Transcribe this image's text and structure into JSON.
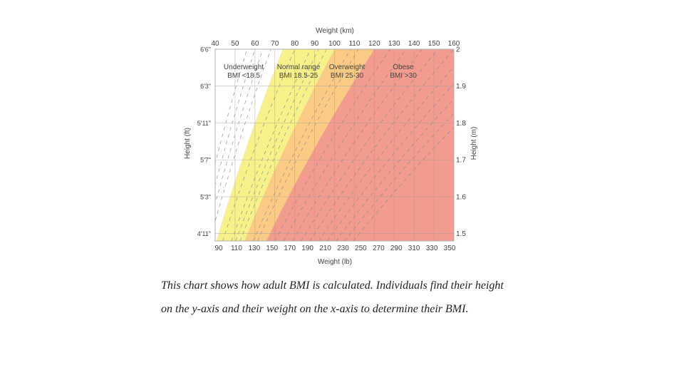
{
  "chart_data": {
    "type": "area",
    "title": "",
    "top_axis": {
      "label": "Weight (km)",
      "ticks": [
        40,
        50,
        60,
        70,
        80,
        90,
        100,
        110,
        120,
        130,
        140,
        150,
        160
      ],
      "range": [
        40,
        160
      ]
    },
    "bottom_axis": {
      "label": "Weight (lb)",
      "ticks": [
        90,
        110,
        130,
        150,
        170,
        190,
        210,
        230,
        250,
        270,
        290,
        310,
        330,
        350
      ]
    },
    "left_axis": {
      "label": "Height (ft)",
      "ticks": [
        {
          "label": "6'6\"",
          "m": 2.0
        },
        {
          "label": "6'3\"",
          "m": 1.9
        },
        {
          "label": "5'11\"",
          "m": 1.8
        },
        {
          "label": "5'7\"",
          "m": 1.7
        },
        {
          "label": "5'3\"",
          "m": 1.6
        },
        {
          "label": "4'11\"",
          "m": 1.5
        }
      ]
    },
    "right_axis": {
      "label": "Height (m)",
      "ticks": [
        "2",
        "1.9",
        "1.8",
        "1.7",
        "1.6",
        "1.5"
      ],
      "range": [
        1.48,
        2.0
      ]
    },
    "bmi_lines": [
      14,
      15,
      16,
      17,
      20,
      22,
      23,
      24,
      27,
      28,
      32,
      34,
      36,
      38,
      40,
      42,
      44,
      46,
      48,
      50
    ],
    "bands": [
      {
        "name": "Underweight",
        "range_label": "BMI <18.5",
        "bmi_min": 0,
        "bmi_max": 18.5,
        "color": "#ffffff"
      },
      {
        "name": "Normal range",
        "range_label": "BMI 18.5-25",
        "bmi_min": 18.5,
        "bmi_max": 25,
        "color": "#f7f18a"
      },
      {
        "name": "Overweight",
        "range_label": "BMI 25-30",
        "bmi_min": 25,
        "bmi_max": 30,
        "color": "#fbcb86"
      },
      {
        "name": "Obese",
        "range_label": "BMI >30",
        "bmi_min": 30,
        "bmi_max": 200,
        "color": "#f29b8f"
      }
    ],
    "grid": true
  },
  "caption": "This chart shows how adult BMI is calculated. Individuals find their height on the y-axis and their weight on the x-axis to determine their BMI."
}
